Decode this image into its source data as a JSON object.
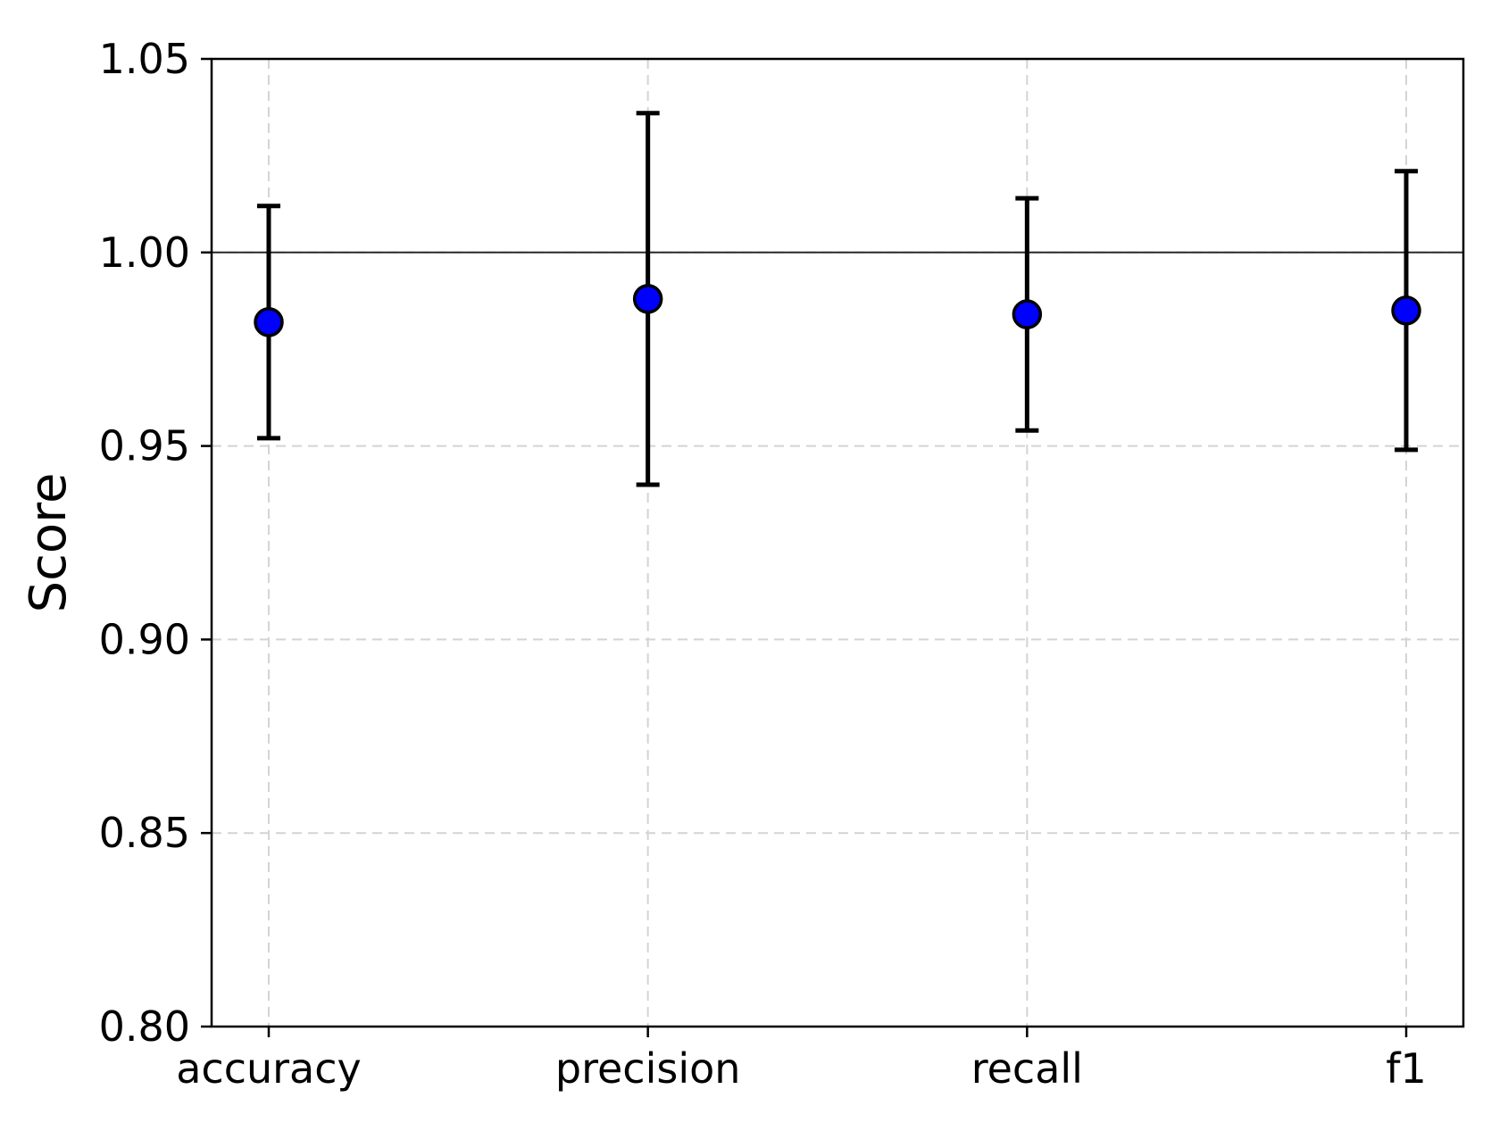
{
  "figure": {
    "background": "#ffffff"
  },
  "chart_data": {
    "type": "scatter",
    "subtype": "errorbar",
    "title": "",
    "xlabel": "",
    "ylabel": "Score",
    "categories": [
      "accuracy",
      "precision",
      "recall",
      "f1"
    ],
    "series": [
      {
        "name": "Score",
        "values": [
          0.982,
          0.988,
          0.984,
          0.985
        ],
        "err_plus": [
          0.03,
          0.048,
          0.03,
          0.036
        ],
        "err_minus": [
          0.03,
          0.048,
          0.03,
          0.036
        ]
      }
    ],
    "ylim": [
      0.8,
      1.05
    ],
    "yticks": [
      0.8,
      0.85,
      0.9,
      0.95,
      1.0,
      1.05
    ],
    "ytick_labels": [
      "0.80",
      "0.85",
      "0.90",
      "0.95",
      "1.00",
      "1.05"
    ],
    "reference_line_y": 1.0,
    "grid": "dashed",
    "legend": "none",
    "colors": {
      "marker_fill": "#0000ff",
      "marker_edge": "#000000",
      "errorbar": "#000000",
      "grid": "#d4d4d4",
      "reference_line": "#2a2a2a",
      "axis": "#000000",
      "text": "#000000"
    }
  }
}
